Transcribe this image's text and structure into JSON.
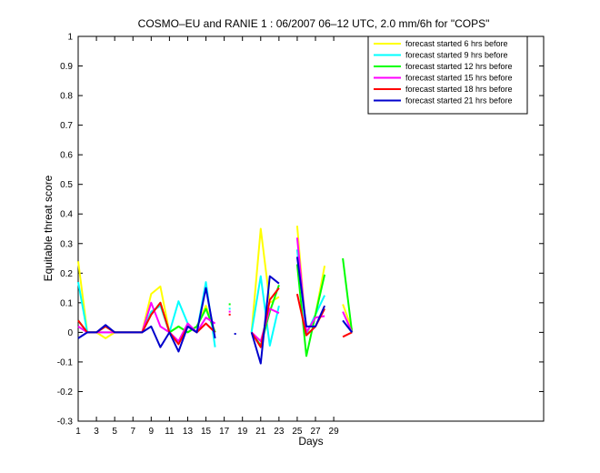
{
  "chart_data": {
    "type": "line",
    "title": "COSMO–EU and RANIE 1 : 06/2007 06–12 UTC, 2.0 mm/6h for \"COPS\"",
    "xlabel": "Days",
    "ylabel": "Equitable threat score",
    "xlim": [
      1,
      52
    ],
    "ylim": [
      -0.3,
      1
    ],
    "xticks": [
      1,
      3,
      5,
      7,
      9,
      11,
      13,
      15,
      17,
      19,
      21,
      23,
      25,
      27,
      29
    ],
    "yticks": [
      -0.3,
      -0.2,
      -0.1,
      0,
      0.1,
      0.2,
      0.3,
      0.4,
      0.5,
      0.6,
      0.7,
      0.8,
      0.9,
      1
    ],
    "grid": false,
    "legend_position": "top-right",
    "series": [
      {
        "name": "forecast started 6 hrs before",
        "color": "#ffff00",
        "points": [
          [
            1,
            0.24
          ],
          [
            2,
            0.0
          ],
          [
            3,
            0.0
          ],
          [
            4,
            -0.02
          ],
          [
            5,
            0.0
          ],
          [
            8,
            0.0
          ],
          [
            9,
            0.13
          ],
          [
            10,
            0.155
          ],
          [
            11,
            0.0
          ],
          [
            12,
            0.02
          ],
          [
            13,
            0.0
          ],
          [
            14,
            0.02
          ],
          [
            15,
            0.09
          ],
          [
            16,
            0.0
          ],
          null,
          [
            20,
            0.0
          ],
          [
            21,
            0.35
          ],
          [
            22,
            0.1
          ],
          [
            23,
            0.12
          ],
          null,
          [
            25,
            0.36
          ],
          [
            26,
            -0.01
          ],
          [
            27,
            0.06
          ],
          [
            28,
            0.225
          ],
          null,
          [
            30,
            0.095
          ],
          [
            31,
            0.01
          ]
        ]
      },
      {
        "name": "forecast started 9 hrs before",
        "color": "#00ffff",
        "points": [
          [
            1,
            0.17
          ],
          [
            2,
            0.0
          ],
          [
            3,
            0.0
          ],
          [
            4,
            0.0
          ],
          [
            5,
            0.0
          ],
          [
            8,
            0.0
          ],
          [
            9,
            0.07
          ],
          [
            10,
            0.09
          ],
          [
            11,
            0.0
          ],
          [
            12,
            0.105
          ],
          [
            13,
            0.03
          ],
          [
            14,
            0.0
          ],
          [
            15,
            0.17
          ],
          [
            16,
            -0.05
          ],
          null,
          [
            20,
            0.0
          ],
          [
            21,
            0.19
          ],
          [
            22,
            -0.045
          ],
          [
            23,
            0.09
          ],
          null,
          [
            25,
            0.28
          ],
          [
            26,
            -0.005
          ],
          [
            27,
            0.06
          ],
          [
            28,
            0.125
          ],
          null,
          [
            30,
            0.04
          ],
          [
            31,
            0.0
          ]
        ]
      },
      {
        "name": "forecast started 12 hrs before",
        "color": "#00ff00",
        "points": [
          [
            1,
            0.04
          ],
          [
            2,
            0.0
          ],
          [
            3,
            0.0
          ],
          [
            4,
            0.02
          ],
          [
            5,
            0.0
          ],
          [
            8,
            0.0
          ],
          [
            9,
            0.06
          ],
          [
            10,
            0.1
          ],
          [
            11,
            0.0
          ],
          [
            12,
            0.02
          ],
          [
            13,
            0.0
          ],
          [
            14,
            0.02
          ],
          [
            15,
            0.08
          ],
          [
            16,
            0.0
          ],
          null,
          [
            20,
            0.0
          ],
          [
            21,
            -0.045
          ],
          [
            22,
            0.07
          ],
          [
            23,
            0.16
          ],
          null,
          [
            25,
            0.23
          ],
          [
            26,
            -0.08
          ],
          [
            27,
            0.06
          ],
          [
            28,
            0.195
          ],
          null,
          [
            30,
            0.25
          ],
          [
            31,
            0.0
          ]
        ]
      },
      {
        "name": "forecast started 15 hrs before",
        "color": "#ff00ff",
        "points": [
          [
            1,
            0.02
          ],
          [
            2,
            0.0
          ],
          [
            3,
            0.0
          ],
          [
            4,
            0.0
          ],
          [
            5,
            0.0
          ],
          [
            8,
            0.0
          ],
          [
            9,
            0.1
          ],
          [
            10,
            0.02
          ],
          [
            11,
            0.0
          ],
          [
            12,
            -0.03
          ],
          [
            13,
            0.03
          ],
          [
            14,
            0.0
          ],
          [
            15,
            0.05
          ],
          [
            16,
            0.03
          ],
          null,
          [
            20,
            0.0
          ],
          [
            21,
            -0.03
          ],
          [
            22,
            0.08
          ],
          [
            23,
            0.065
          ],
          null,
          [
            25,
            0.32
          ],
          [
            26,
            0.0
          ],
          [
            27,
            0.05
          ],
          [
            28,
            0.055
          ],
          null,
          [
            30,
            0.07
          ],
          [
            31,
            0.0
          ]
        ]
      },
      {
        "name": "forecast started 18 hrs before",
        "color": "#ff0000",
        "points": [
          [
            1,
            0.04
          ],
          [
            2,
            0.0
          ],
          [
            3,
            0.0
          ],
          [
            4,
            0.02
          ],
          [
            5,
            0.0
          ],
          [
            8,
            0.0
          ],
          [
            9,
            0.06
          ],
          [
            10,
            0.1
          ],
          [
            11,
            0.0
          ],
          [
            12,
            -0.04
          ],
          [
            13,
            0.02
          ],
          [
            14,
            0.0
          ],
          [
            15,
            0.03
          ],
          [
            16,
            0.0
          ],
          null,
          [
            20,
            0.0
          ],
          [
            21,
            -0.05
          ],
          [
            22,
            0.11
          ],
          [
            23,
            0.15
          ],
          null,
          [
            25,
            0.13
          ],
          [
            26,
            -0.01
          ],
          [
            27,
            0.02
          ],
          [
            28,
            0.08
          ],
          null,
          [
            30,
            -0.015
          ],
          [
            31,
            0.0
          ]
        ]
      },
      {
        "name": "forecast started 21 hrs before",
        "color": "#0000cc",
        "points": [
          [
            1,
            -0.02
          ],
          [
            2,
            0.0
          ],
          [
            3,
            0.0
          ],
          [
            4,
            0.025
          ],
          [
            5,
            0.0
          ],
          [
            8,
            0.0
          ],
          [
            9,
            0.02
          ],
          [
            10,
            -0.05
          ],
          [
            11,
            0.0
          ],
          [
            12,
            -0.065
          ],
          [
            13,
            0.02
          ],
          [
            14,
            0.0
          ],
          [
            15,
            0.15
          ],
          [
            16,
            -0.02
          ],
          null,
          [
            20,
            0.0
          ],
          [
            21,
            -0.105
          ],
          [
            22,
            0.19
          ],
          [
            23,
            0.165
          ],
          null,
          [
            25,
            0.255
          ],
          [
            26,
            0.02
          ],
          [
            27,
            0.02
          ],
          [
            28,
            0.09
          ],
          null,
          [
            30,
            0.04
          ],
          [
            31,
            0.0
          ]
        ]
      }
    ],
    "isolated_markers": [
      {
        "x": 17.6,
        "y": 0.095,
        "color": "#00ff00"
      },
      {
        "x": 17.6,
        "y": 0.08,
        "color": "#00ffff"
      },
      {
        "x": 17.6,
        "y": 0.07,
        "color": "#ff00ff"
      },
      {
        "x": 17.6,
        "y": 0.06,
        "color": "#ff0000"
      },
      {
        "x": 18.2,
        "y": -0.005,
        "color": "#0000cc"
      }
    ]
  }
}
